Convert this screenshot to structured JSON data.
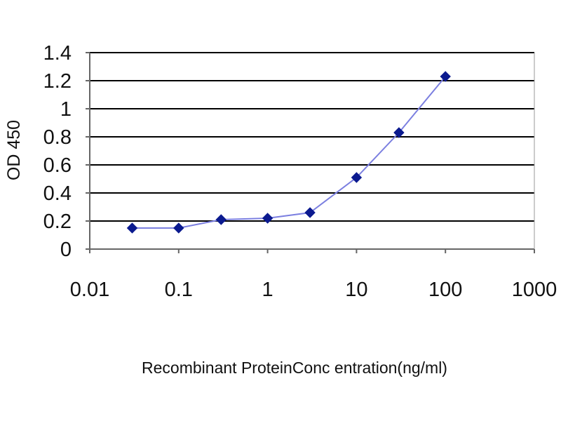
{
  "chart_data": {
    "type": "line",
    "xlabel": "Recombinant ProteinConc entration(ng/ml)",
    "ylabel": "OD 450",
    "x_scale": "log",
    "xlim": [
      0.01,
      1000
    ],
    "ylim": [
      0,
      1.4
    ],
    "x_ticks": [
      "0.01",
      "0.1",
      "1",
      "10",
      "100",
      "1000"
    ],
    "y_ticks": [
      "0",
      "0.2",
      "0.4",
      "0.6",
      "0.8",
      "1",
      "1.2",
      "1.4"
    ],
    "grid": "horizontal",
    "line_color": "#7b7fe0",
    "marker_color": "#0b1a8f",
    "series": [
      {
        "x": [
          0.03,
          0.1,
          0.3,
          1,
          3,
          10,
          30,
          100
        ],
        "y": [
          0.15,
          0.15,
          0.21,
          0.22,
          0.26,
          0.51,
          0.83,
          1.23
        ]
      }
    ]
  }
}
